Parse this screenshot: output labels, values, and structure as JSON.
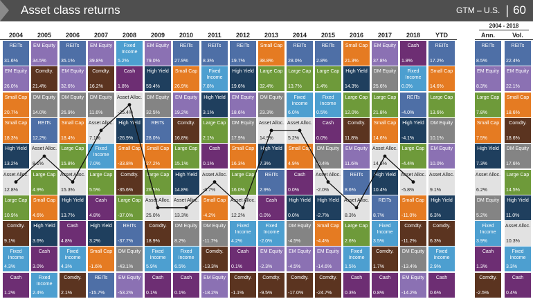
{
  "header": {
    "title": "Asset class returns",
    "source": "GTM – U.S.",
    "page": "60"
  },
  "summary_heading": "2004 - 2018",
  "colors": {
    "REITs": "#4e6fa6",
    "EM Equity": "#8b71b3",
    "Fixed Income": "#4d9fd0",
    "Small Cap": "#e57b22",
    "Comdty.": "#5b3420",
    "Cash": "#6d2e73",
    "Large Cap": "#6e9a3a",
    "DM Equity": "#848484",
    "High Yield": "#1f3f5e",
    "Asset Alloc.": "#e2e2e2"
  },
  "chart_data": {
    "type": "table",
    "title": "Asset class returns",
    "columns": [
      "2004",
      "2005",
      "2006",
      "2007",
      "2008",
      "2009",
      "2010",
      "2011",
      "2012",
      "2013",
      "2014",
      "2015",
      "2016",
      "2017",
      "2018",
      "YTD",
      "Ann.",
      "Vol."
    ],
    "line_series": "Asset Alloc.",
    "rows": [
      [
        [
          "REITs",
          "31.6%"
        ],
        [
          "EM Equity",
          "34.5%"
        ],
        [
          "REITs",
          "35.1%"
        ],
        [
          "EM Equity",
          "39.8%"
        ],
        [
          "Fixed Income",
          "5.2%"
        ],
        [
          "EM Equity",
          "79.0%"
        ],
        [
          "REITs",
          "27.9%"
        ],
        [
          "REITs",
          "8.3%"
        ],
        [
          "REITs",
          "19.7%"
        ],
        [
          "Small Cap",
          "38.8%"
        ],
        [
          "REITs",
          "28.0%"
        ],
        [
          "REITs",
          "2.8%"
        ],
        [
          "Small Cap",
          "21.3%"
        ],
        [
          "EM Equity",
          "37.8%"
        ],
        [
          "Cash",
          "1.8%"
        ],
        [
          "REITs",
          "17.2%"
        ],
        [
          "REITs",
          "8.5%"
        ],
        [
          "REITs",
          "22.4%"
        ]
      ],
      [
        [
          "EM Equity",
          "26.0%"
        ],
        [
          "Comdty.",
          "21.4%"
        ],
        [
          "EM Equity",
          "32.6%"
        ],
        [
          "Comdty.",
          "16.2%"
        ],
        [
          "Cash",
          "1.8%"
        ],
        [
          "High Yield",
          "59.4%"
        ],
        [
          "Small Cap",
          "26.9%"
        ],
        [
          "Fixed Income",
          "7.8%"
        ],
        [
          "High Yield",
          "19.6%"
        ],
        [
          "Large Cap",
          "32.4%"
        ],
        [
          "Large Cap",
          "13.7%"
        ],
        [
          "Large Cap",
          "1.4%"
        ],
        [
          "High Yield",
          "14.3%"
        ],
        [
          "DM Equity",
          "25.6%"
        ],
        [
          "Fixed Income",
          "0.0%"
        ],
        [
          "Small Cap",
          "14.6%"
        ],
        [
          "EM Equity",
          "8.3%"
        ],
        [
          "EM Equity",
          "22.1%"
        ]
      ],
      [
        [
          "Small Cap",
          "20.7%"
        ],
        [
          "DM Equity",
          "14.0%"
        ],
        [
          "DM Equity",
          "26.9%"
        ],
        [
          "DM Equity",
          "11.6%"
        ],
        [
          "Asset Alloc.",
          "-25.4%"
        ],
        [
          "DM Equity",
          "32.5%"
        ],
        [
          "EM Equity",
          "19.2%"
        ],
        [
          "High Yield",
          "3.1%"
        ],
        [
          "EM Equity",
          "18.6%"
        ],
        [
          "DM Equity",
          "23.3%"
        ],
        [
          "Fixed Income",
          "6.0%"
        ],
        [
          "Fixed Income",
          "0.5%"
        ],
        [
          "Large Cap",
          "12.0%"
        ],
        [
          "Large Cap",
          "21.8%"
        ],
        [
          "REITs",
          "-4.0%"
        ],
        [
          "Large Cap",
          "13.6%"
        ],
        [
          "Large Cap",
          "7.8%"
        ],
        [
          "Small Cap",
          "18.6%"
        ]
      ],
      [
        [
          "Small Cap",
          "18.3%"
        ],
        [
          "REITs",
          "12.2%"
        ],
        [
          "Small Cap",
          "18.4%"
        ],
        [
          "Asset Alloc.",
          "7.1%"
        ],
        [
          "High Yield",
          "-26.9%"
        ],
        [
          "REITs",
          "28.0%"
        ],
        [
          "Comdty.",
          "16.8%"
        ],
        [
          "Large Cap",
          "2.1%"
        ],
        [
          "DM Equity",
          "17.9%"
        ],
        [
          "Asset Alloc.",
          "14.9%"
        ],
        [
          "Asset Alloc.",
          "5.2%"
        ],
        [
          "Cash",
          "0.0%"
        ],
        [
          "Comdty.",
          "11.8%"
        ],
        [
          "Small Cap",
          "14.6%"
        ],
        [
          "High Yield",
          "-4.1%"
        ],
        [
          "DM Equity",
          "10.1%"
        ],
        [
          "Small Cap",
          "7.5%"
        ],
        [
          "Comdty.",
          "18.6%"
        ]
      ],
      [
        [
          "High Yield",
          "13.2%"
        ],
        [
          "Asset Alloc.",
          "8.1%"
        ],
        [
          "Large Cap",
          "15.8%"
        ],
        [
          "Fixed Income",
          "7.0%"
        ],
        [
          "Small Cap",
          "-33.8%"
        ],
        [
          "Small Cap",
          "27.2%"
        ],
        [
          "Large Cap",
          "15.1%"
        ],
        [
          "Cash",
          "0.1%"
        ],
        [
          "Small Cap",
          "16.3%"
        ],
        [
          "High Yield",
          "7.3%"
        ],
        [
          "Small Cap",
          "4.9%"
        ],
        [
          "DM Equity",
          "-0.4%"
        ],
        [
          "EM Equity",
          "11.6%"
        ],
        [
          "Asset Alloc.",
          "14.6%"
        ],
        [
          "Large Cap",
          "-4.4%"
        ],
        [
          "EM Equity",
          "10.0%"
        ],
        [
          "High Yield",
          "7.3%"
        ],
        [
          "DM Equity",
          "17.6%"
        ]
      ],
      [
        [
          "Asset Alloc.",
          "12.8%"
        ],
        [
          "Large Cap",
          "4.9%"
        ],
        [
          "Asset Alloc.",
          "15.3%"
        ],
        [
          "Large Cap",
          "5.5%"
        ],
        [
          "Comdty.",
          "-35.6%"
        ],
        [
          "Large Cap",
          "26.5%"
        ],
        [
          "High Yield",
          "14.8%"
        ],
        [
          "Asset Alloc.",
          "-0.7%"
        ],
        [
          "Large Cap",
          "16.0%"
        ],
        [
          "REITs",
          "2.9%"
        ],
        [
          "Cash",
          "0.0%"
        ],
        [
          "Asset Alloc.",
          "-2.0%"
        ],
        [
          "REITs",
          "8.6%"
        ],
        [
          "High Yield",
          "10.4%"
        ],
        [
          "Asset Alloc.",
          "-5.8%"
        ],
        [
          "Asset Alloc.",
          "9.1%"
        ],
        [
          "Asset Alloc.",
          "6.2%"
        ],
        [
          "Large Cap",
          "14.5%"
        ]
      ],
      [
        [
          "Large Cap",
          "10.9%"
        ],
        [
          "Small Cap",
          "4.6%"
        ],
        [
          "High Yield",
          "13.7%"
        ],
        [
          "Cash",
          "4.8%"
        ],
        [
          "Large Cap",
          "-37.0%"
        ],
        [
          "Asset Alloc.",
          "25.0%"
        ],
        [
          "Asset Alloc.",
          "13.3%"
        ],
        [
          "Small Cap",
          "-4.2%"
        ],
        [
          "Asset Alloc.",
          "12.2%"
        ],
        [
          "Cash",
          "0.0%"
        ],
        [
          "High Yield",
          "0.0%"
        ],
        [
          "High Yield",
          "-2.7%"
        ],
        [
          "Asset Alloc.",
          "8.3%"
        ],
        [
          "REITs",
          "8.7%"
        ],
        [
          "Small Cap",
          "-11.0%"
        ],
        [
          "High Yield",
          "6.3%"
        ],
        [
          "DM Equity",
          "5.2%"
        ],
        [
          "High Yield",
          "11.0%"
        ]
      ],
      [
        [
          "Comdty.",
          "9.1%"
        ],
        [
          "High Yield",
          "3.6%"
        ],
        [
          "Cash",
          "4.8%"
        ],
        [
          "High Yield",
          "3.2%"
        ],
        [
          "REITs",
          "-37.7%"
        ],
        [
          "Comdty.",
          "18.9%"
        ],
        [
          "DM Equity",
          "8.2%"
        ],
        [
          "DM Equity",
          "-11.7%"
        ],
        [
          "Fixed Income",
          "4.2%"
        ],
        [
          "Fixed Income",
          "-2.0%"
        ],
        [
          "DM Equity",
          "-4.5%"
        ],
        [
          "Small Cap",
          "-4.4%"
        ],
        [
          "Large Cap",
          "2.6%"
        ],
        [
          "Fixed Income",
          "3.5%"
        ],
        [
          "Comdty.",
          "-11.2%"
        ],
        [
          "Comdty.",
          "6.3%"
        ],
        [
          "Fixed Income",
          "3.9%"
        ],
        [
          "Asset Alloc.",
          "10.3%"
        ]
      ],
      [
        [
          "Fixed Income",
          "4.3%"
        ],
        [
          "Cash",
          "3.0%"
        ],
        [
          "Fixed Income",
          "4.3%"
        ],
        [
          "Small Cap",
          "-1.6%"
        ],
        [
          "DM Equity",
          "-43.1%"
        ],
        [
          "Fixed Income",
          "5.9%"
        ],
        [
          "Fixed Income",
          "6.5%"
        ],
        [
          "Comdty.",
          "-13.3%"
        ],
        [
          "Cash",
          "0.1%"
        ],
        [
          "EM Equity",
          "-2.3%"
        ],
        [
          "EM Equity",
          "-4.5%"
        ],
        [
          "EM Equity",
          "-14.6%"
        ],
        [
          "Fixed Income",
          "1.5%"
        ],
        [
          "Comdty.",
          "1.7%"
        ],
        [
          "DM Equity",
          "-13.4%"
        ],
        [
          "Fixed Income",
          "2.9%"
        ],
        [
          "Cash",
          "1.3%"
        ],
        [
          "Fixed Income",
          "3.3%"
        ]
      ],
      [
        [
          "Cash",
          "1.2%"
        ],
        [
          "Fixed Income",
          "2.4%"
        ],
        [
          "Comdty.",
          "2.1%"
        ],
        [
          "REITs",
          "-15.7%"
        ],
        [
          "EM Equity",
          "-53.2%"
        ],
        [
          "Cash",
          "0.1%"
        ],
        [
          "Cash",
          "0.1%"
        ],
        [
          "EM Equity",
          "-18.2%"
        ],
        [
          "Comdty.",
          "-1.1%"
        ],
        [
          "Comdty.",
          "-9.5%"
        ],
        [
          "Comdty.",
          "-17.0%"
        ],
        [
          "Comdty.",
          "-24.7%"
        ],
        [
          "Cash",
          "0.3%"
        ],
        [
          "Cash",
          "0.8%"
        ],
        [
          "EM Equity",
          "-14.2%"
        ],
        [
          "Cash",
          "0.6%"
        ],
        [
          "Comdty.",
          "-2.5%"
        ],
        [
          "Cash",
          "0.4%"
        ]
      ]
    ]
  }
}
